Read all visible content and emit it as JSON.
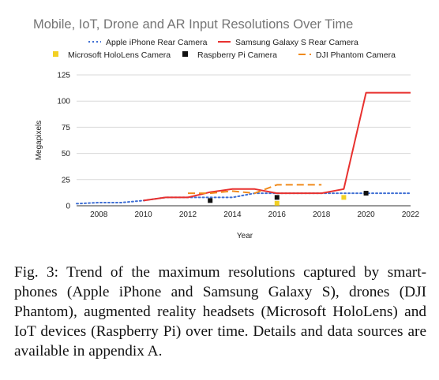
{
  "chart_data": {
    "type": "line",
    "title": "Mobile, IoT, Drone and AR Input Resolutions Over Time",
    "xlabel": "Year",
    "ylabel": "Megapixels",
    "xlim": [
      2007,
      2022
    ],
    "ylim": [
      0,
      125
    ],
    "x_ticks": [
      2008,
      2010,
      2012,
      2014,
      2016,
      2018,
      2020,
      2022
    ],
    "y_ticks": [
      0,
      25,
      50,
      75,
      100,
      125
    ],
    "grid": "horizontal",
    "legend_position": "top",
    "series": [
      {
        "name": "Apple iPhone Rear Camera",
        "style": "dotted",
        "color": "#3f6fd4",
        "points": [
          [
            2007,
            2
          ],
          [
            2008,
            3
          ],
          [
            2009,
            3
          ],
          [
            2010,
            5
          ],
          [
            2011,
            8
          ],
          [
            2012,
            8
          ],
          [
            2013,
            8
          ],
          [
            2014,
            8
          ],
          [
            2015,
            12
          ],
          [
            2016,
            12
          ],
          [
            2017,
            12
          ],
          [
            2018,
            12
          ],
          [
            2019,
            12
          ],
          [
            2020,
            12
          ],
          [
            2021,
            12
          ],
          [
            2022,
            12
          ]
        ]
      },
      {
        "name": "Samsung Galaxy S Rear Camera",
        "style": "solid",
        "color": "#e8312f",
        "points": [
          [
            2010,
            5
          ],
          [
            2011,
            8
          ],
          [
            2012,
            8
          ],
          [
            2013,
            13
          ],
          [
            2014,
            16
          ],
          [
            2015,
            16
          ],
          [
            2016,
            12
          ],
          [
            2017,
            12
          ],
          [
            2018,
            12
          ],
          [
            2019,
            16
          ],
          [
            2020,
            108
          ],
          [
            2021,
            108
          ],
          [
            2022,
            108
          ]
        ]
      },
      {
        "name": "Microsoft HoloLens Camera",
        "style": "marker",
        "color": "#f2d024",
        "points": [
          [
            2016,
            2.4
          ],
          [
            2019,
            8
          ]
        ]
      },
      {
        "name": "Raspberry Pi Camera",
        "style": "marker",
        "color": "#111111",
        "points": [
          [
            2013,
            5
          ],
          [
            2016,
            8
          ],
          [
            2020,
            12
          ]
        ]
      },
      {
        "name": "DJI Phantom Camera",
        "style": "dashed",
        "color": "#f08a1c",
        "points": [
          [
            2012,
            12
          ],
          [
            2013,
            12
          ],
          [
            2014,
            14
          ],
          [
            2015,
            12
          ],
          [
            2016,
            20
          ],
          [
            2017,
            20
          ],
          [
            2018,
            20
          ]
        ]
      }
    ]
  },
  "caption": {
    "text": "Fig. 3: Trend of the maximum resolutions captured by smart-phones (Apple iPhone and Samsung Galaxy S), drones (DJI Phantom), augmented reality headsets (Microsoft HoloLens) and IoT devices (Raspberry Pi) over time. Details and data sources are available in appendix A."
  }
}
